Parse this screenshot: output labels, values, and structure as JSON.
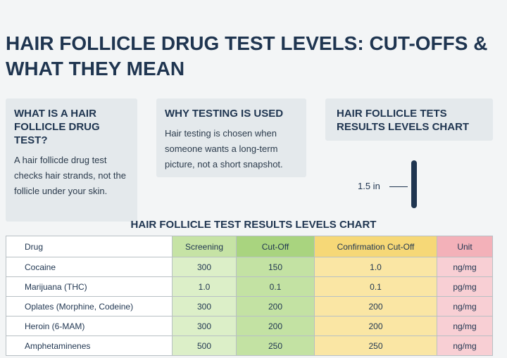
{
  "header": {
    "title": "HAIR FOLLICLE DRUG TEST LEVELS: CUT-OFFS & WHAT THEY MEAN"
  },
  "cards": [
    {
      "title": "WHAT IS A HAIR FOLLICLE DRUG TEST?",
      "text": "A hair follicde drug test checks hair strands, not the follicle under your skin."
    },
    {
      "title": "WHY TESTING IS USED",
      "text": "Hair testing is chosen when someone wants a long-term picture, not a short snapshot."
    },
    {
      "title": "HAIR FOLLICLE TETS RESULTS LEVELS CHART",
      "measure": "1.5 in"
    }
  ],
  "table": {
    "title": "HAIR FOLLICLE TEST RESULTS LEVELS CHART",
    "columns": [
      "Drug",
      "Screening",
      "Cut-Off",
      "Confirmation Cut-Off",
      "Unit"
    ],
    "rows": [
      [
        "Cocaine",
        "300",
        "150",
        "1.0",
        "ng/mg"
      ],
      [
        "Marijuana (THC)",
        "1.0",
        "0.1",
        "0.1",
        "pg/mg"
      ],
      [
        "Oplates (Morphine, Codeine)",
        "300",
        "200",
        "200",
        "ng/mg"
      ],
      [
        "Heroin (6-MAM)",
        "300",
        "200",
        "200",
        "ng/mg"
      ],
      [
        "Amphetaminenes",
        "500",
        "250",
        "250",
        "ng/mg"
      ]
    ]
  }
}
